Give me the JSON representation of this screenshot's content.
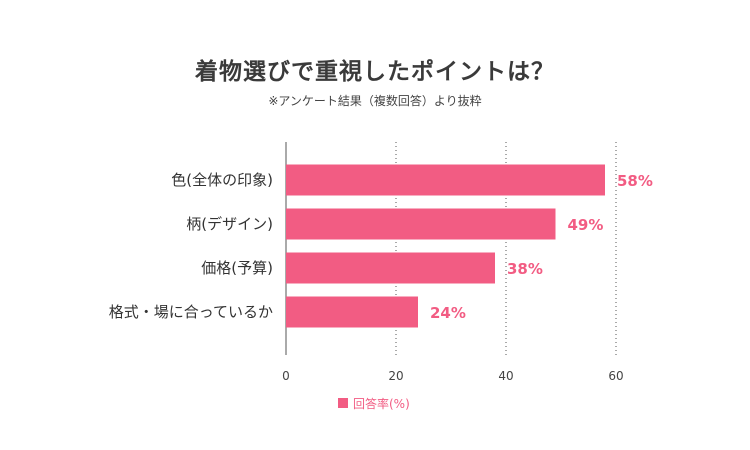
{
  "chart_data": {
    "type": "bar",
    "orientation": "horizontal",
    "title": "着物選びで重視したポイントは？",
    "subtitle": "※アンケート結果（複数回答）より抜粋",
    "categories": [
      "色(全体の印象)",
      "柄(デザイン)",
      "価格(予算)",
      "格式・場に合っているか"
    ],
    "series": [
      {
        "name": "回答率(%)",
        "values": [
          58,
          49,
          38,
          24
        ],
        "value_labels": [
          "58%",
          "49%",
          "38%",
          "24%"
        ]
      }
    ],
    "x_ticks": [
      "0",
      "20",
      "40",
      "60"
    ],
    "xlim": [
      0,
      60
    ],
    "grid": "vertical-dotted",
    "legend": "bottom-center",
    "colors": {
      "bar": "#f25c83",
      "label": "#f25c83"
    }
  }
}
